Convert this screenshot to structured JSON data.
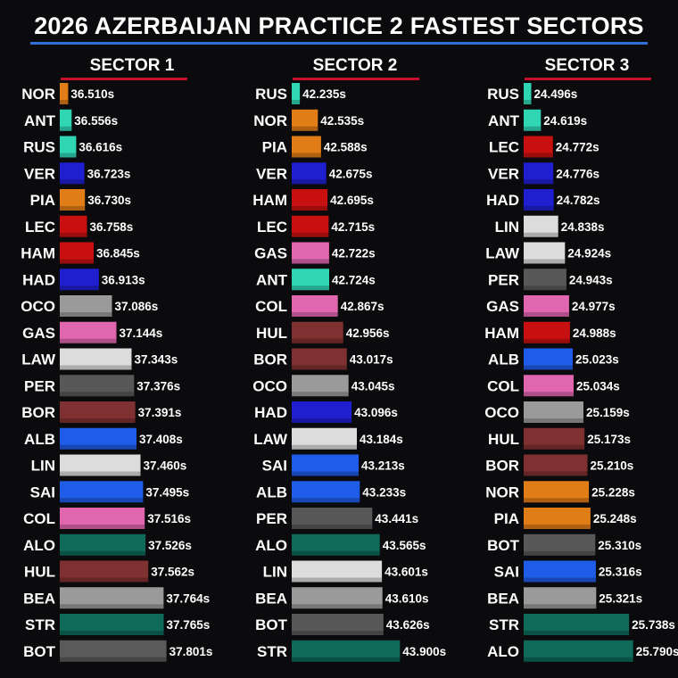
{
  "title": "2026 AZERBAIJAN PRACTICE 2 FASTEST SECTORS",
  "team_colors": {
    "mclaren": "#e07d16",
    "mercedes": "#2fd6b4",
    "redbull": "#1f1fd0",
    "ferrari": "#c81010",
    "alpine": "#e066b0",
    "racingbulls": "#1f5ce8",
    "williams": "#1f5ce8",
    "haas": "#9a9a9a",
    "cadillac": "#dcdcdc",
    "cadillac_dark": "#585858",
    "audi": "#7f3030",
    "aston": "#0f6a5a",
    "bot_cad": "#5a5a5a"
  },
  "chart_data": [
    {
      "type": "bar",
      "title": "SECTOR 1",
      "unit": "s",
      "xlim": [
        36.4,
        37.9
      ],
      "categories": [
        "NOR",
        "ANT",
        "RUS",
        "VER",
        "PIA",
        "LEC",
        "HAM",
        "HAD",
        "OCO",
        "GAS",
        "LAW",
        "PER",
        "BOR",
        "ALB",
        "LIN",
        "SAI",
        "COL",
        "ALO",
        "HUL",
        "BEA",
        "STR",
        "BOT"
      ],
      "values": [
        36.51,
        36.556,
        36.616,
        36.723,
        36.73,
        36.758,
        36.845,
        36.913,
        37.086,
        37.144,
        37.343,
        37.376,
        37.391,
        37.408,
        37.46,
        37.495,
        37.516,
        37.526,
        37.562,
        37.764,
        37.765,
        37.801
      ],
      "labels": [
        "36.510s",
        "36.556s",
        "36.616s",
        "36.723s",
        "36.730s",
        "36.758s",
        "36.845s",
        "36.913s",
        "37.086s",
        "37.144s",
        "37.343s",
        "37.376s",
        "37.391s",
        "37.408s",
        "37.460s",
        "37.495s",
        "37.516s",
        "37.526s",
        "37.562s",
        "37.764s",
        "37.765s",
        "37.801s"
      ],
      "colors": [
        "#e07d16",
        "#2fd6b4",
        "#2fd6b4",
        "#1f1fd0",
        "#e07d16",
        "#c81010",
        "#c81010",
        "#1f1fd0",
        "#9a9a9a",
        "#e066b0",
        "#dcdcdc",
        "#585858",
        "#7f3030",
        "#1f5ce8",
        "#dcdcdc",
        "#1f5ce8",
        "#e066b0",
        "#0f6a5a",
        "#7f3030",
        "#9a9a9a",
        "#0f6a5a",
        "#5a5a5a"
      ]
    },
    {
      "type": "bar",
      "title": "SECTOR 2",
      "unit": "s",
      "xlim": [
        42.1,
        44.0
      ],
      "categories": [
        "RUS",
        "NOR",
        "PIA",
        "VER",
        "HAM",
        "LEC",
        "GAS",
        "ANT",
        "COL",
        "HUL",
        "BOR",
        "OCO",
        "HAD",
        "LAW",
        "SAI",
        "ALB",
        "PER",
        "ALO",
        "LIN",
        "BEA",
        "BOT",
        "STR"
      ],
      "values": [
        42.235,
        42.535,
        42.588,
        42.675,
        42.695,
        42.715,
        42.722,
        42.724,
        42.867,
        42.956,
        43.017,
        43.045,
        43.096,
        43.184,
        43.213,
        43.233,
        43.441,
        43.565,
        43.601,
        43.61,
        43.626,
        43.9
      ],
      "labels": [
        "42.235s",
        "42.535s",
        "42.588s",
        "42.675s",
        "42.695s",
        "42.715s",
        "42.722s",
        "42.724s",
        "42.867s",
        "42.956s",
        "43.017s",
        "43.045s",
        "43.096s",
        "43.184s",
        "43.213s",
        "43.233s",
        "43.441s",
        "43.565s",
        "43.601s",
        "43.610s",
        "43.626s",
        "43.900s"
      ],
      "colors": [
        "#2fd6b4",
        "#e07d16",
        "#e07d16",
        "#1f1fd0",
        "#c81010",
        "#c81010",
        "#e066b0",
        "#2fd6b4",
        "#e066b0",
        "#7f3030",
        "#7f3030",
        "#9a9a9a",
        "#1f1fd0",
        "#dcdcdc",
        "#1f5ce8",
        "#1f5ce8",
        "#585858",
        "#0f6a5a",
        "#dcdcdc",
        "#9a9a9a",
        "#585858",
        "#0f6a5a"
      ]
    },
    {
      "type": "bar",
      "title": "SECTOR 3",
      "unit": "s",
      "xlim": [
        24.4,
        25.85
      ],
      "categories": [
        "RUS",
        "ANT",
        "LEC",
        "VER",
        "HAD",
        "LIN",
        "LAW",
        "PER",
        "GAS",
        "HAM",
        "ALB",
        "COL",
        "OCO",
        "HUL",
        "BOR",
        "NOR",
        "PIA",
        "BOT",
        "SAI",
        "BEA",
        "STR",
        "ALO"
      ],
      "values": [
        24.496,
        24.619,
        24.772,
        24.776,
        24.782,
        24.838,
        24.924,
        24.943,
        24.977,
        24.988,
        25.023,
        25.034,
        25.159,
        25.173,
        25.21,
        25.228,
        25.248,
        25.31,
        25.316,
        25.321,
        25.738,
        25.79
      ],
      "labels": [
        "24.496s",
        "24.619s",
        "24.772s",
        "24.776s",
        "24.782s",
        "24.838s",
        "24.924s",
        "24.943s",
        "24.977s",
        "24.988s",
        "25.023s",
        "25.034s",
        "25.159s",
        "25.173s",
        "25.210s",
        "25.228s",
        "25.248s",
        "25.310s",
        "25.316s",
        "25.321s",
        "25.738s",
        "25.790s"
      ],
      "colors": [
        "#2fd6b4",
        "#2fd6b4",
        "#c81010",
        "#1f1fd0",
        "#1f1fd0",
        "#dcdcdc",
        "#dcdcdc",
        "#585858",
        "#e066b0",
        "#c81010",
        "#1f5ce8",
        "#e066b0",
        "#9a9a9a",
        "#7f3030",
        "#7f3030",
        "#e07d16",
        "#e07d16",
        "#585858",
        "#1f5ce8",
        "#9a9a9a",
        "#0f6a5a",
        "#0f6a5a"
      ]
    }
  ]
}
